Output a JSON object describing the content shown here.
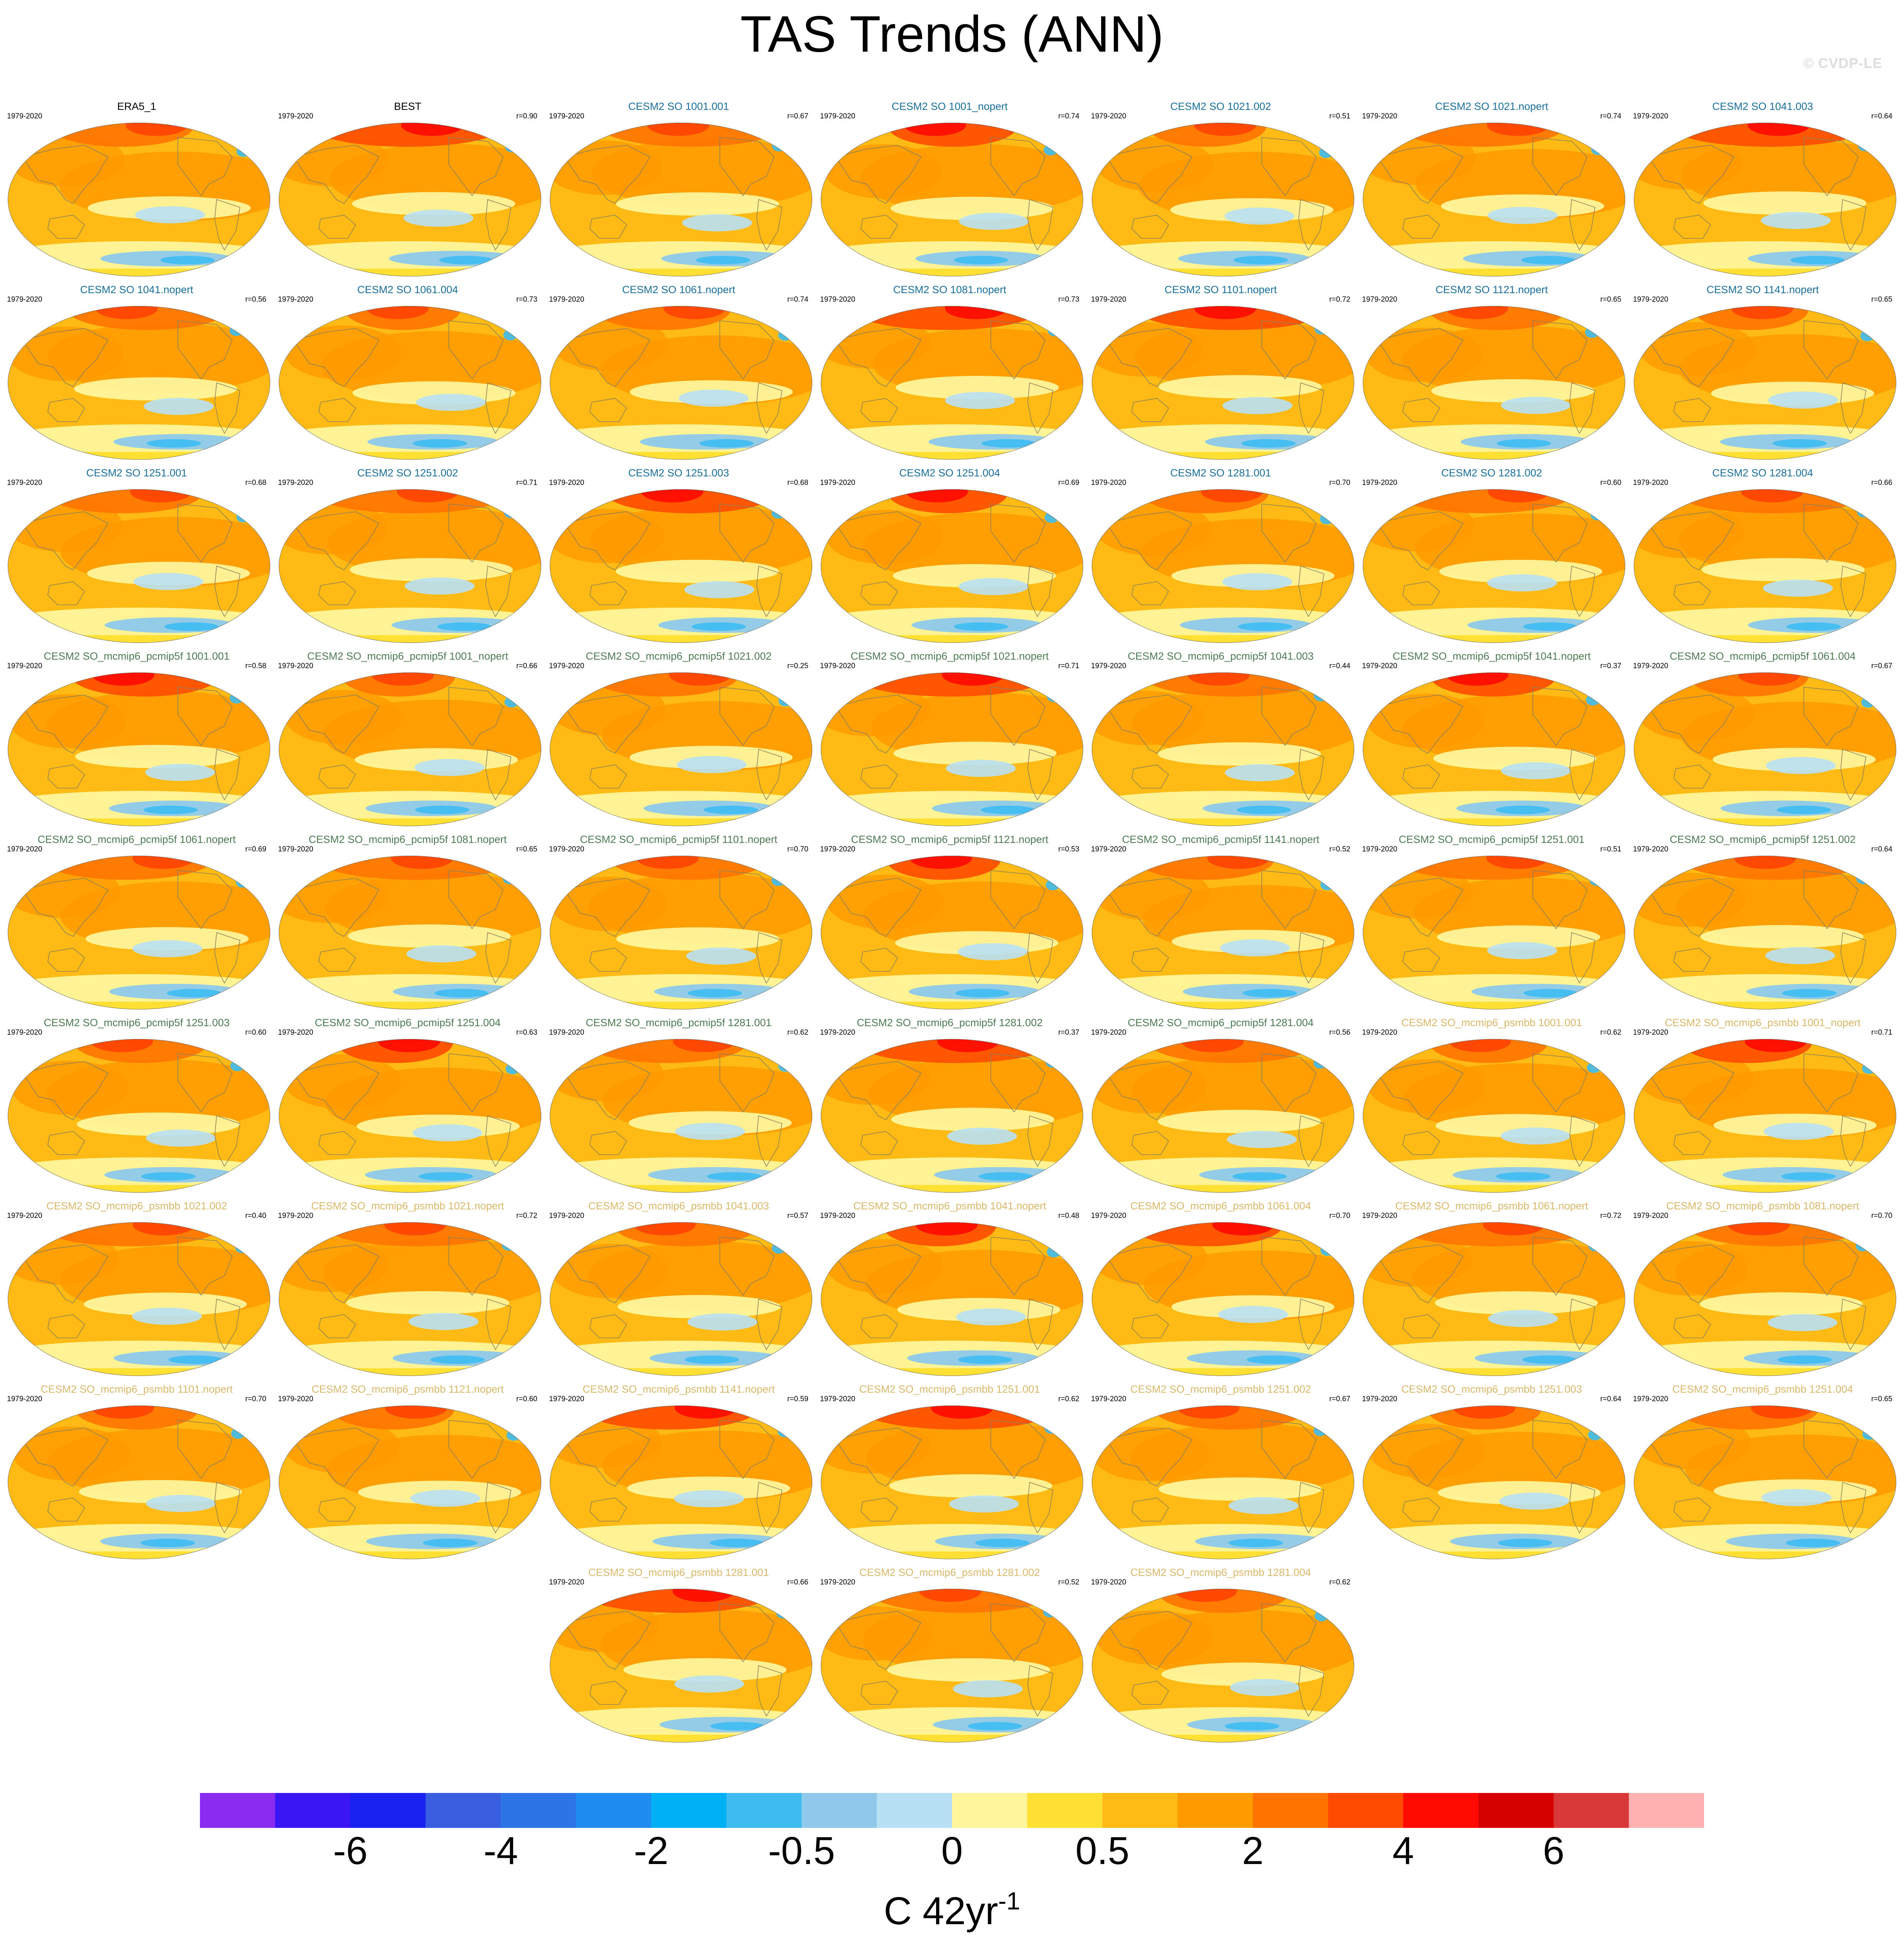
{
  "title": "TAS Trends (ANN)",
  "watermark": "© CVDP-LE",
  "years": "1979-2020",
  "group_colors": {
    "obs": "#000000",
    "so": "#1a6f9a",
    "pcmip5f": "#4d7a52",
    "psmbb": "#d9b86a"
  },
  "panels": [
    {
      "title": "ERA5_1",
      "group": "obs",
      "r": ""
    },
    {
      "title": "BEST",
      "group": "obs",
      "r": "r=0.90"
    },
    {
      "title": "CESM2 SO 1001.001",
      "group": "so",
      "r": "r=0.67"
    },
    {
      "title": "CESM2 SO 1001_nopert",
      "group": "so",
      "r": "r=0.74"
    },
    {
      "title": "CESM2 SO 1021.002",
      "group": "so",
      "r": "r=0.51"
    },
    {
      "title": "CESM2 SO 1021.nopert",
      "group": "so",
      "r": "r=0.74"
    },
    {
      "title": "CESM2 SO 1041.003",
      "group": "so",
      "r": "r=0.64"
    },
    {
      "title": "CESM2 SO 1041.nopert",
      "group": "so",
      "r": "r=0.56"
    },
    {
      "title": "CESM2 SO 1061.004",
      "group": "so",
      "r": "r=0.73"
    },
    {
      "title": "CESM2 SO 1061.nopert",
      "group": "so",
      "r": "r=0.74"
    },
    {
      "title": "CESM2 SO 1081.nopert",
      "group": "so",
      "r": "r=0.73"
    },
    {
      "title": "CESM2 SO 1101.nopert",
      "group": "so",
      "r": "r=0.72"
    },
    {
      "title": "CESM2 SO 1121.nopert",
      "group": "so",
      "r": "r=0.65"
    },
    {
      "title": "CESM2 SO 1141.nopert",
      "group": "so",
      "r": "r=0.65"
    },
    {
      "title": "CESM2 SO 1251.001",
      "group": "so",
      "r": "r=0.68"
    },
    {
      "title": "CESM2 SO 1251.002",
      "group": "so",
      "r": "r=0.71"
    },
    {
      "title": "CESM2 SO 1251.003",
      "group": "so",
      "r": "r=0.68"
    },
    {
      "title": "CESM2 SO 1251.004",
      "group": "so",
      "r": "r=0.69"
    },
    {
      "title": "CESM2 SO 1281.001",
      "group": "so",
      "r": "r=0.70"
    },
    {
      "title": "CESM2 SO 1281.002",
      "group": "so",
      "r": "r=0.60"
    },
    {
      "title": "CESM2 SO 1281.004",
      "group": "so",
      "r": "r=0.66"
    },
    {
      "title": "CESM2 SO_mcmip6_pcmip5f 1001.001",
      "group": "pcmip5f",
      "r": "r=0.58"
    },
    {
      "title": "CESM2 SO_mcmip6_pcmip5f 1001_nopert",
      "group": "pcmip5f",
      "r": "r=0.66"
    },
    {
      "title": "CESM2 SO_mcmip6_pcmip5f 1021.002",
      "group": "pcmip5f",
      "r": "r=0.25"
    },
    {
      "title": "CESM2 SO_mcmip6_pcmip5f 1021.nopert",
      "group": "pcmip5f",
      "r": "r=0.71"
    },
    {
      "title": "CESM2 SO_mcmip6_pcmip5f 1041.003",
      "group": "pcmip5f",
      "r": "r=0.44"
    },
    {
      "title": "CESM2 SO_mcmip6_pcmip5f 1041.nopert",
      "group": "pcmip5f",
      "r": "r=0.37"
    },
    {
      "title": "CESM2 SO_mcmip6_pcmip5f 1061.004",
      "group": "pcmip5f",
      "r": "r=0.67"
    },
    {
      "title": "CESM2 SO_mcmip6_pcmip5f 1061.nopert",
      "group": "pcmip5f",
      "r": "r=0.69"
    },
    {
      "title": "CESM2 SO_mcmip6_pcmip5f 1081.nopert",
      "group": "pcmip5f",
      "r": "r=0.65"
    },
    {
      "title": "CESM2 SO_mcmip6_pcmip5f 1101.nopert",
      "group": "pcmip5f",
      "r": "r=0.70"
    },
    {
      "title": "CESM2 SO_mcmip6_pcmip5f 1121.nopert",
      "group": "pcmip5f",
      "r": "r=0.53"
    },
    {
      "title": "CESM2 SO_mcmip6_pcmip5f 1141.nopert",
      "group": "pcmip5f",
      "r": "r=0.52"
    },
    {
      "title": "CESM2 SO_mcmip6_pcmip5f 1251.001",
      "group": "pcmip5f",
      "r": "r=0.51"
    },
    {
      "title": "CESM2 SO_mcmip6_pcmip5f 1251.002",
      "group": "pcmip5f",
      "r": "r=0.64"
    },
    {
      "title": "CESM2 SO_mcmip6_pcmip5f 1251.003",
      "group": "pcmip5f",
      "r": "r=0.60"
    },
    {
      "title": "CESM2 SO_mcmip6_pcmip5f 1251.004",
      "group": "pcmip5f",
      "r": "r=0.63"
    },
    {
      "title": "CESM2 SO_mcmip6_pcmip5f 1281.001",
      "group": "pcmip5f",
      "r": "r=0.62"
    },
    {
      "title": "CESM2 SO_mcmip6_pcmip5f 1281.002",
      "group": "pcmip5f",
      "r": "r=0.37"
    },
    {
      "title": "CESM2 SO_mcmip6_pcmip5f 1281.004",
      "group": "pcmip5f",
      "r": "r=0.56"
    },
    {
      "title": "CESM2 SO_mcmip6_psmbb 1001.001",
      "group": "psmbb",
      "r": "r=0.62"
    },
    {
      "title": "CESM2 SO_mcmip6_psmbb 1001_nopert",
      "group": "psmbb",
      "r": "r=0.71"
    },
    {
      "title": "CESM2 SO_mcmip6_psmbb 1021.002",
      "group": "psmbb",
      "r": "r=0.40"
    },
    {
      "title": "CESM2 SO_mcmip6_psmbb 1021.nopert",
      "group": "psmbb",
      "r": "r=0.72"
    },
    {
      "title": "CESM2 SO_mcmip6_psmbb 1041.003",
      "group": "psmbb",
      "r": "r=0.57"
    },
    {
      "title": "CESM2 SO_mcmip6_psmbb 1041.nopert",
      "group": "psmbb",
      "r": "r=0.48"
    },
    {
      "title": "CESM2 SO_mcmip6_psmbb 1061.004",
      "group": "psmbb",
      "r": "r=0.70"
    },
    {
      "title": "CESM2 SO_mcmip6_psmbb 1061.nopert",
      "group": "psmbb",
      "r": "r=0.72"
    },
    {
      "title": "CESM2 SO_mcmip6_psmbb 1081.nopert",
      "group": "psmbb",
      "r": "r=0.70"
    },
    {
      "title": "CESM2 SO_mcmip6_psmbb 1101.nopert",
      "group": "psmbb",
      "r": "r=0.70"
    },
    {
      "title": "CESM2 SO_mcmip6_psmbb 1121.nopert",
      "group": "psmbb",
      "r": "r=0.60"
    },
    {
      "title": "CESM2 SO_mcmip6_psmbb 1141.nopert",
      "group": "psmbb",
      "r": "r=0.59"
    },
    {
      "title": "CESM2 SO_mcmip6_psmbb 1251.001",
      "group": "psmbb",
      "r": "r=0.62"
    },
    {
      "title": "CESM2 SO_mcmip6_psmbb 1251.002",
      "group": "psmbb",
      "r": "r=0.67"
    },
    {
      "title": "CESM2 SO_mcmip6_psmbb 1251.003",
      "group": "psmbb",
      "r": "r=0.64"
    },
    {
      "title": "CESM2 SO_mcmip6_psmbb 1251.004",
      "group": "psmbb",
      "r": "r=0.65"
    },
    {
      "title": "CESM2 SO_mcmip6_psmbb 1281.001",
      "group": "psmbb",
      "r": "r=0.66"
    },
    {
      "title": "CESM2 SO_mcmip6_psmbb 1281.002",
      "group": "psmbb",
      "r": "r=0.52"
    },
    {
      "title": "CESM2 SO_mcmip6_psmbb 1281.004",
      "group": "psmbb",
      "r": "r=0.62"
    }
  ],
  "colorbar": {
    "colors": [
      "#8b2bef",
      "#3a16f5",
      "#1a22f2",
      "#3a5ee0",
      "#2d74e6",
      "#1e8cf0",
      "#00b0f5",
      "#3dbcf2",
      "#8ec9ec",
      "#b8e0f5",
      "#fff59a",
      "#ffe033",
      "#ffbb14",
      "#ff9a00",
      "#ff7400",
      "#ff4b00",
      "#ff0a00",
      "#d60000",
      "#d93838",
      "#ffb0b0"
    ],
    "tick_labels": [
      "-6",
      "-4",
      "-2",
      "-0.5",
      "0",
      "0.5",
      "2",
      "4",
      "6"
    ],
    "tick_boundaries": [
      2,
      4,
      6,
      8,
      10,
      12,
      14,
      16,
      18
    ]
  },
  "units": {
    "base": "C 42yr",
    "exponent": "-1"
  }
}
